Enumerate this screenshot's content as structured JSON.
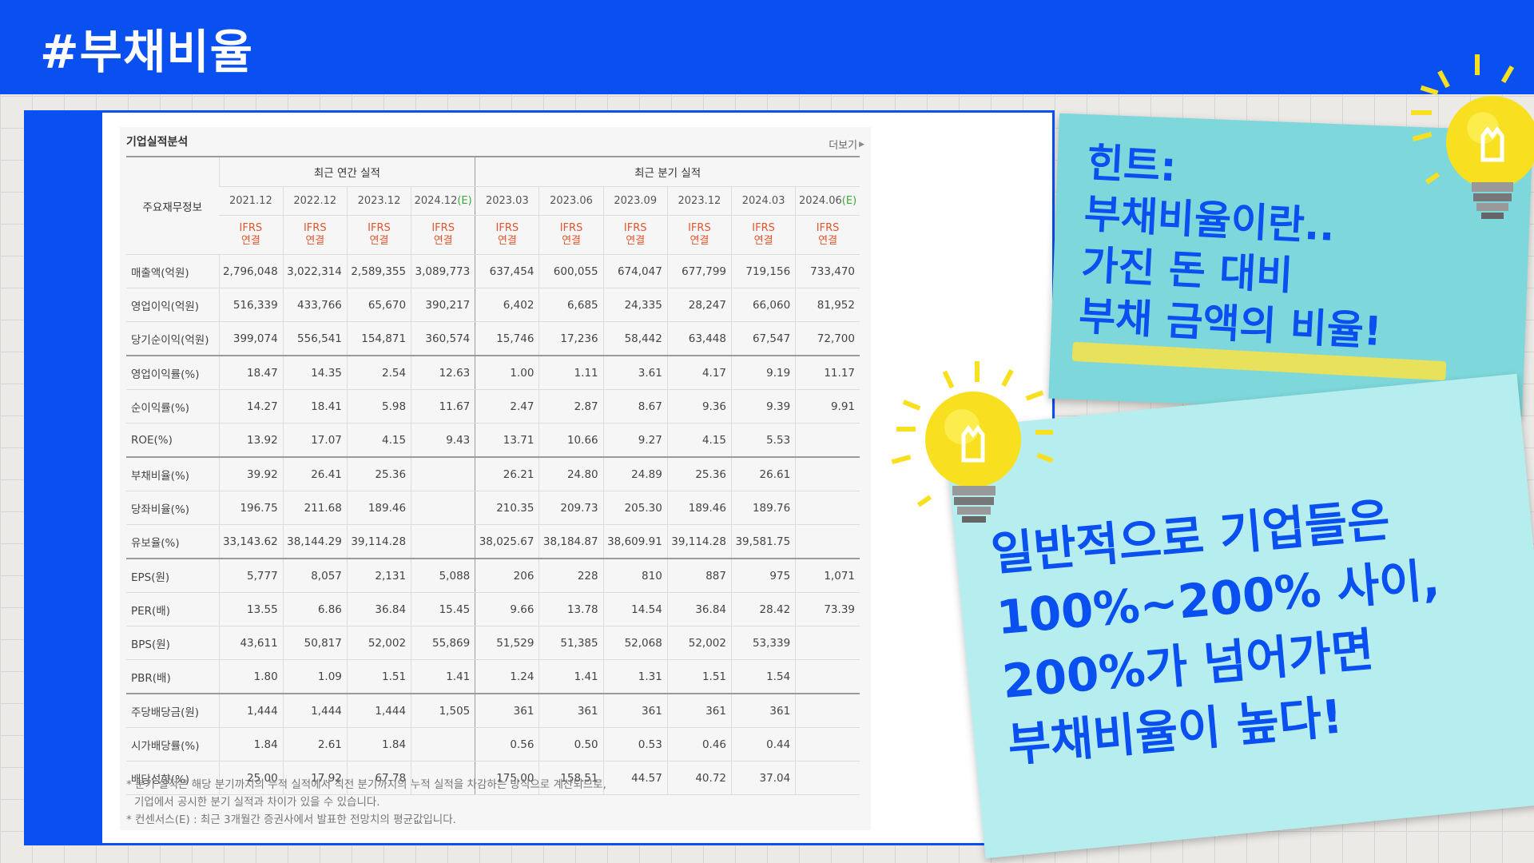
{
  "header": {
    "title": "#부채비율"
  },
  "panel": {
    "title": "기업실적분석",
    "more_label": "더보기",
    "row_header_label": "주요재무정보",
    "group_annual": "최근 연간 실적",
    "group_quarter": "최근 분기 실적",
    "periods": [
      "2021.12",
      "2022.12",
      "2023.12",
      "2024.12",
      "2023.03",
      "2023.06",
      "2023.09",
      "2023.12",
      "2024.03",
      "2024.06"
    ],
    "estimate_mark": "(E)",
    "accounting_line1": "IFRS",
    "accounting_line2": "연결",
    "rows": [
      {
        "label": "매출액(억원)",
        "values": [
          "2,796,048",
          "3,022,314",
          "2,589,355",
          "3,089,773",
          "637,454",
          "600,055",
          "674,047",
          "677,799",
          "719,156",
          "733,470"
        ]
      },
      {
        "label": "영업이익(억원)",
        "values": [
          "516,339",
          "433,766",
          "65,670",
          "390,217",
          "6,402",
          "6,685",
          "24,335",
          "28,247",
          "66,060",
          "81,952"
        ]
      },
      {
        "label": "당기순이익(억원)",
        "values": [
          "399,074",
          "556,541",
          "154,871",
          "360,574",
          "15,746",
          "17,236",
          "58,442",
          "63,448",
          "67,547",
          "72,700"
        ]
      },
      {
        "label": "영업이익률(%)",
        "values": [
          "18.47",
          "14.35",
          "2.54",
          "12.63",
          "1.00",
          "1.11",
          "3.61",
          "4.17",
          "9.19",
          "11.17"
        ]
      },
      {
        "label": "순이익률(%)",
        "values": [
          "14.27",
          "18.41",
          "5.98",
          "11.67",
          "2.47",
          "2.87",
          "8.67",
          "9.36",
          "9.39",
          "9.91"
        ]
      },
      {
        "label": "ROE(%)",
        "values": [
          "13.92",
          "17.07",
          "4.15",
          "9.43",
          "13.71",
          "10.66",
          "9.27",
          "4.15",
          "5.53",
          ""
        ]
      },
      {
        "label": "부채비율(%)",
        "values": [
          "39.92",
          "26.41",
          "25.36",
          "",
          "26.21",
          "24.80",
          "24.89",
          "25.36",
          "26.61",
          ""
        ]
      },
      {
        "label": "당좌비율(%)",
        "values": [
          "196.75",
          "211.68",
          "189.46",
          "",
          "210.35",
          "209.73",
          "205.30",
          "189.46",
          "189.76",
          ""
        ]
      },
      {
        "label": "유보율(%)",
        "values": [
          "33,143.62",
          "38,144.29",
          "39,114.28",
          "",
          "38,025.67",
          "38,184.87",
          "38,609.91",
          "39,114.28",
          "39,581.75",
          ""
        ]
      },
      {
        "label": "EPS(원)",
        "values": [
          "5,777",
          "8,057",
          "2,131",
          "5,088",
          "206",
          "228",
          "810",
          "887",
          "975",
          "1,071"
        ]
      },
      {
        "label": "PER(배)",
        "values": [
          "13.55",
          "6.86",
          "36.84",
          "15.45",
          "9.66",
          "13.78",
          "14.54",
          "36.84",
          "28.42",
          "73.39"
        ]
      },
      {
        "label": "BPS(원)",
        "values": [
          "43,611",
          "50,817",
          "52,002",
          "55,869",
          "51,529",
          "51,385",
          "52,068",
          "52,002",
          "53,339",
          ""
        ]
      },
      {
        "label": "PBR(배)",
        "values": [
          "1.80",
          "1.09",
          "1.51",
          "1.41",
          "1.24",
          "1.41",
          "1.31",
          "1.51",
          "1.54",
          ""
        ]
      },
      {
        "label": "주당배당금(원)",
        "values": [
          "1,444",
          "1,444",
          "1,444",
          "1,505",
          "361",
          "361",
          "361",
          "361",
          "361",
          ""
        ]
      },
      {
        "label": "시가배당률(%)",
        "values": [
          "1.84",
          "2.61",
          "1.84",
          "",
          "0.56",
          "0.50",
          "0.53",
          "0.46",
          "0.44",
          ""
        ]
      },
      {
        "label": "배당성향(%)",
        "values": [
          "25.00",
          "17.92",
          "67.78",
          "",
          "175.00",
          "158.51",
          "44.57",
          "40.72",
          "37.04",
          ""
        ]
      }
    ],
    "notes": [
      "* 분기 실적은 해당 분기까지의 누적 실적에서 직전 분기까지의 누적 실적을 차감하는 방식으로 계산되므로,",
      "  기업에서 공시한 분기 실적과 차이가 있을 수 있습니다.",
      "* 컨센서스(E) : 최근 3개월간 증권사에서 발표한 전망치의 평균값입니다."
    ]
  },
  "hint_card": {
    "text": "힌트:\n부채비율이란..\n가진 돈 대비\n부채 금액의 비율!"
  },
  "main_card": {
    "text": "일반적으로 기업들은\n100%~200% 사이,\n200%가 넘어가면\n부채비율이 높다!"
  },
  "colors": {
    "brand_blue": "#0a4ff0",
    "card_teal": "#7ed8db",
    "card_light": "#b6eef0",
    "bulb_yellow": "#f8e020",
    "highlight_yellow": "#f4e24e"
  },
  "icons": {
    "bulb": "lightbulb-icon",
    "more": "chevron-right-icon"
  }
}
